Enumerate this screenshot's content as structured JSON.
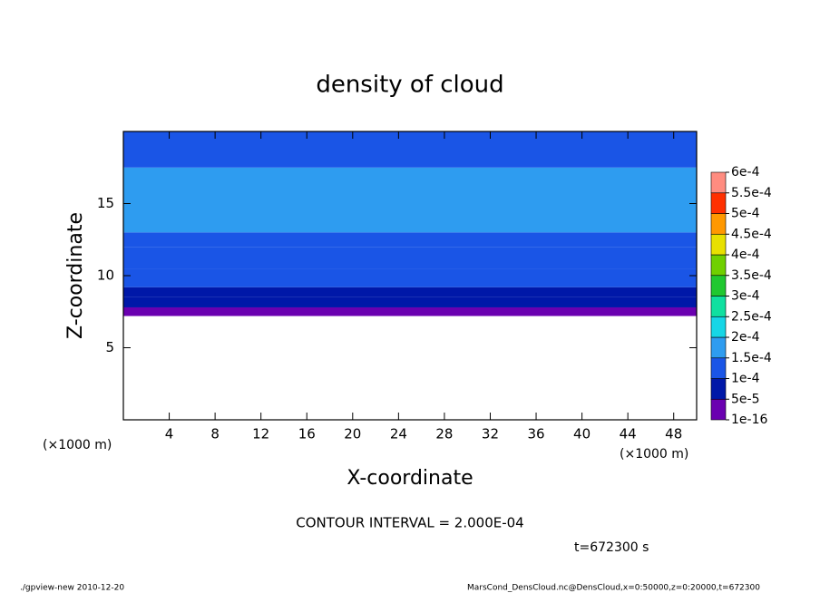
{
  "chart_data": {
    "type": "contour",
    "title": "density of cloud",
    "x_label": "X-coordinate",
    "y_label": "Z-coordinate",
    "x_unit": "(×1000 m)",
    "y_unit": "(×1000 m)",
    "contour_interval": "CONTOUR INTERVAL = 2.000E-04",
    "time": "t=672300 s",
    "footer_left": "./gpview-new   2010-12-20",
    "footer_right": "MarsCond_DensCloud.nc@DensCloud,x=0:50000,z=0:20000,t=672300",
    "xlim": [
      0,
      50
    ],
    "ylim": [
      0,
      20
    ],
    "xticks": [
      4,
      8,
      12,
      16,
      20,
      24,
      28,
      32,
      36,
      40,
      44,
      48
    ],
    "yticks": [
      5,
      10,
      15
    ],
    "z_bands": [
      7.2,
      7.8,
      8.5,
      9.2,
      10.5,
      12,
      13,
      17.5,
      20
    ],
    "values": [
      2e-05,
      6e-05,
      8e-05,
      0.00011,
      0.00012,
      0.00013,
      0.00016,
      0.00012
    ],
    "colorbar": {
      "levels": [
        {
          "value": 1e-16,
          "label": "1e-16"
        },
        {
          "value": 5e-05,
          "label": "5e-5"
        },
        {
          "value": 0.0001,
          "label": "1e-4"
        },
        {
          "value": 0.00015,
          "label": "1.5e-4"
        },
        {
          "value": 0.0002,
          "label": "2e-4"
        },
        {
          "value": 0.00025,
          "label": "2.5e-4"
        },
        {
          "value": 0.0003,
          "label": "3e-4"
        },
        {
          "value": 0.00035,
          "label": "3.5e-4"
        },
        {
          "value": 0.0004,
          "label": "4e-4"
        },
        {
          "value": 0.00045,
          "label": "4.5e-4"
        },
        {
          "value": 0.0005,
          "label": "5e-4"
        },
        {
          "value": 0.00055,
          "label": "5.5e-4"
        },
        {
          "value": 0.0006,
          "label": "6e-4"
        }
      ],
      "colors": [
        "#6a00b0",
        "#0018a8",
        "#1a55e6",
        "#2e9cf0",
        "#16d6e6",
        "#10e0a0",
        "#20c830",
        "#70d000",
        "#e8e000",
        "#ff9800",
        "#ff3000",
        "#ff8c80"
      ]
    }
  }
}
